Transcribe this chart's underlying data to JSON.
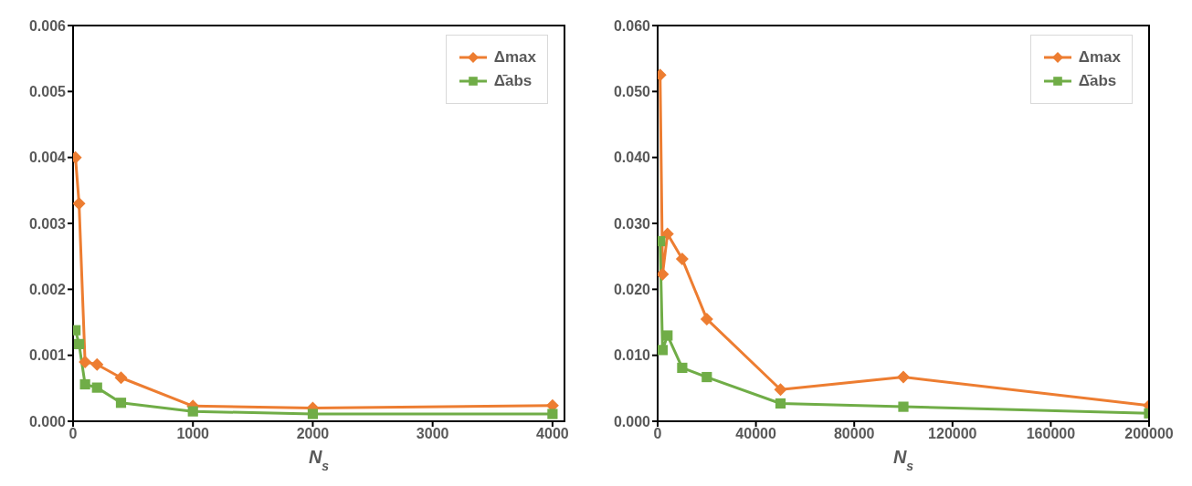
{
  "chart_data": [
    {
      "type": "line",
      "xlabel": "N$_{s}$",
      "x": [
        20,
        50,
        100,
        200,
        400,
        1000,
        2000,
        4000
      ],
      "xlim": [
        0,
        4100
      ],
      "xticks": [
        0,
        1000,
        2000,
        3000,
        4000
      ],
      "ylim": [
        0,
        0.006
      ],
      "yticks": [
        {
          "value": 0,
          "label": "0.000"
        },
        {
          "value": 0.001,
          "label": "0.001"
        },
        {
          "value": 0.002,
          "label": "0.002"
        },
        {
          "value": 0.003,
          "label": "0.003"
        },
        {
          "value": 0.004,
          "label": "0.004"
        },
        {
          "value": 0.005,
          "label": "0.005"
        },
        {
          "value": 0.006,
          "label": "0.006"
        }
      ],
      "grid": false,
      "legend": "top right",
      "series": [
        {
          "name": "Δmax",
          "color": "#ed7d31",
          "marker": "diamond",
          "values": [
            0.004,
            0.0033,
            0.0009,
            0.00086,
            0.00066,
            0.00023,
            0.0002,
            0.00024
          ]
        },
        {
          "name": "Δ̄abs",
          "color": "#70ad47",
          "marker": "square",
          "values": [
            0.00138,
            0.00117,
            0.00056,
            0.00051,
            0.00028,
            0.00015,
            0.00011,
            0.00011
          ]
        }
      ]
    },
    {
      "type": "line",
      "xlabel": "N$_{s}$",
      "x": [
        1000,
        2000,
        4000,
        10000,
        20000,
        50000,
        100000,
        200000
      ],
      "xlim": [
        0,
        200000
      ],
      "xticks": [
        0,
        40000,
        80000,
        120000,
        160000,
        200000
      ],
      "ylim": [
        0,
        0.06
      ],
      "yticks": [
        {
          "value": 0,
          "label": "0.000"
        },
        {
          "value": 0.01,
          "label": "0.010"
        },
        {
          "value": 0.02,
          "label": "0.020"
        },
        {
          "value": 0.03,
          "label": "0.030"
        },
        {
          "value": 0.04,
          "label": "0.040"
        },
        {
          "value": 0.05,
          "label": "0.050"
        },
        {
          "value": 0.06,
          "label": "0.060"
        }
      ],
      "grid": false,
      "legend": "top right",
      "series": [
        {
          "name": "Δmax",
          "color": "#ed7d31",
          "marker": "diamond",
          "values": [
            0.0525,
            0.0223,
            0.0284,
            0.0246,
            0.0155,
            0.0048,
            0.0067,
            0.0024
          ]
        },
        {
          "name": "Δ̄abs",
          "color": "#70ad47",
          "marker": "square",
          "values": [
            0.0273,
            0.0108,
            0.013,
            0.0081,
            0.0067,
            0.0027,
            0.0022,
            0.0012
          ]
        }
      ]
    }
  ]
}
